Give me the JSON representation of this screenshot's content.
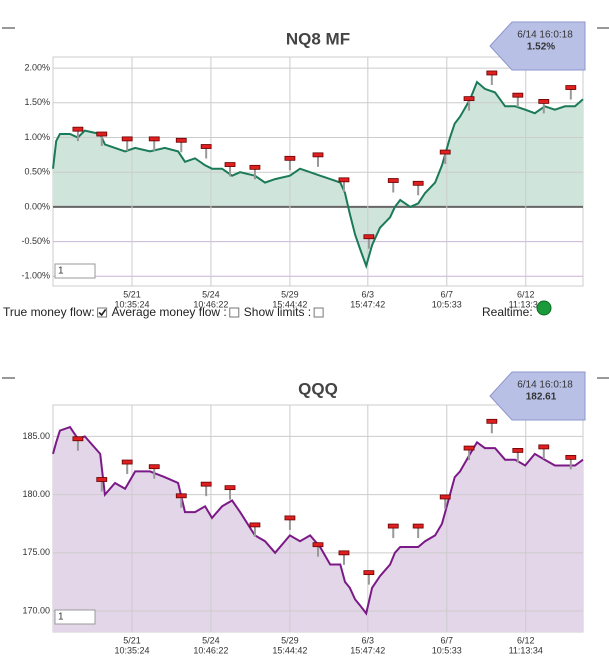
{
  "chart_data": [
    {
      "type": "area",
      "title": "NQ8 MF",
      "line_color": "#1b7a58",
      "fill_color": "#cfe5dc",
      "baseline": 0,
      "xlim": [
        0,
        100
      ],
      "ylim": [
        -1.14,
        2.16
      ],
      "grid": true,
      "yticks": [
        {
          "value": 2,
          "label": "2.00%"
        },
        {
          "value": 1.5,
          "label": "1.50%"
        },
        {
          "value": 1,
          "label": "1.00%"
        },
        {
          "value": 0.5,
          "label": "0.50%"
        },
        {
          "value": 0,
          "label": "0.00%"
        },
        {
          "value": -0.5,
          "label": "-0.50%"
        },
        {
          "value": -1,
          "label": "-1.00%"
        }
      ],
      "xticks": [
        {
          "value": 14.9,
          "label": "5/21",
          "time": "10:35:24"
        },
        {
          "value": 29.8,
          "label": "5/24",
          "time": "10:46:22"
        },
        {
          "value": 44.7,
          "label": "5/29",
          "time": "15:44:42"
        },
        {
          "value": 59.4,
          "label": "6/3",
          "time": "15:47:42"
        },
        {
          "value": 74.3,
          "label": "6/7",
          "time": "10:5:33"
        },
        {
          "value": 89.2,
          "label": "6/12",
          "time": "11:13:34"
        }
      ],
      "series": [
        {
          "x": [
            0,
            0.6,
            1.3,
            3.2,
            4.7,
            6.0,
            8.9,
            9.8,
            11.7,
            13.6,
            15.5,
            18.3,
            21.1,
            23.6,
            24.9,
            26.8,
            28.7,
            30.0,
            31.9,
            33.8,
            35.3,
            38.1,
            40.0,
            41.9,
            44.7,
            46.6,
            48.5,
            50.4,
            52.3,
            54.2,
            55.1,
            56.0,
            57.0,
            57.9,
            59.1,
            60.2,
            61.7,
            63.6,
            64.5,
            65.5,
            67.4,
            68.9,
            70.2,
            72.1,
            73.4,
            74.9,
            75.8,
            76.8,
            78.7,
            80.0,
            81.5,
            83.4,
            85.3,
            87.2,
            89.1,
            90.9,
            92.8,
            94.7,
            96.6,
            98.5,
            100
          ],
          "values": [
            0.55,
            0.95,
            1.05,
            1.05,
            1.0,
            1.1,
            1.05,
            0.9,
            0.85,
            0.8,
            0.85,
            0.8,
            0.85,
            0.8,
            0.65,
            0.7,
            0.6,
            0.55,
            0.55,
            0.45,
            0.5,
            0.45,
            0.35,
            0.4,
            0.45,
            0.55,
            0.5,
            0.45,
            0.4,
            0.35,
            0.2,
            -0.1,
            -0.4,
            -0.6,
            -0.85,
            -0.55,
            -0.3,
            -0.15,
            0.0,
            0.1,
            0.0,
            0.05,
            0.2,
            0.35,
            0.6,
            1.0,
            1.2,
            1.3,
            1.55,
            1.8,
            1.7,
            1.65,
            1.45,
            1.45,
            1.4,
            1.35,
            1.45,
            1.4,
            1.45,
            1.45,
            1.55
          ]
        }
      ],
      "flags": {
        "x": [
          4.7,
          9.2,
          14.0,
          19.1,
          24.2,
          28.9,
          33.4,
          38.1,
          44.7,
          50.0,
          54.9,
          59.6,
          64.2,
          68.9,
          74.0,
          78.5,
          82.8,
          87.7,
          92.6,
          97.7
        ],
        "values": [
          1.12,
          1.05,
          0.98,
          0.98,
          0.96,
          0.87,
          0.61,
          0.57,
          0.7,
          0.75,
          0.39,
          -0.43,
          0.38,
          0.34,
          0.79,
          1.56,
          1.93,
          1.61,
          1.52,
          1.72
        ]
      },
      "callout": {
        "x_label": "6/14 16:0:18",
        "value": 1.52,
        "value_label": "1.52%"
      },
      "input": "1"
    },
    {
      "type": "area",
      "title": "QQQ",
      "line_color": "#7b1a86",
      "fill_color": "#e4d6e9",
      "xlim": [
        0,
        100
      ],
      "ylim": [
        168.2,
        187.7
      ],
      "grid": true,
      "yticks": [
        {
          "value": 185,
          "label": "185.00"
        },
        {
          "value": 180,
          "label": "180.00"
        },
        {
          "value": 175,
          "label": "175.00"
        },
        {
          "value": 170,
          "label": "170.00"
        }
      ],
      "xticks": [
        {
          "value": 14.9,
          "label": "5/21",
          "time": "10:35:24"
        },
        {
          "value": 29.8,
          "label": "5/24",
          "time": "10:46:22"
        },
        {
          "value": 44.7,
          "label": "5/29",
          "time": "15:44:42"
        },
        {
          "value": 59.4,
          "label": "6/3",
          "time": "15:47:42"
        },
        {
          "value": 74.3,
          "label": "6/7",
          "time": "10:5:33"
        },
        {
          "value": 89.2,
          "label": "6/12",
          "time": "11:13:34"
        }
      ],
      "series": [
        {
          "x": [
            0,
            0.6,
            1.3,
            3.2,
            4.7,
            6.0,
            8.9,
            9.8,
            11.7,
            13.6,
            15.5,
            18.3,
            21.1,
            23.6,
            24.9,
            26.8,
            28.7,
            30.0,
            31.9,
            33.8,
            35.3,
            38.1,
            40.0,
            41.9,
            44.7,
            46.6,
            48.5,
            50.4,
            52.3,
            54.2,
            55.1,
            56.0,
            57.0,
            57.9,
            59.1,
            60.2,
            61.7,
            63.6,
            64.5,
            65.5,
            67.4,
            68.9,
            70.2,
            72.1,
            73.4,
            74.9,
            75.8,
            76.8,
            78.7,
            80.0,
            81.5,
            83.4,
            85.3,
            87.2,
            89.1,
            90.9,
            92.8,
            94.7,
            96.6,
            98.5,
            100
          ],
          "values": [
            183.5,
            184.5,
            185.5,
            185.8,
            184.8,
            185.0,
            183.5,
            180.0,
            181.0,
            180.5,
            182.0,
            182.0,
            181.5,
            181.0,
            178.5,
            178.5,
            179.0,
            178.0,
            179.0,
            179.5,
            178.5,
            176.5,
            176.0,
            175.0,
            176.5,
            176.0,
            176.5,
            175.5,
            174.0,
            174.0,
            172.5,
            172.0,
            171.0,
            170.5,
            169.8,
            172.0,
            173.0,
            174.0,
            175.0,
            175.5,
            175.5,
            175.5,
            176.0,
            176.5,
            177.5,
            180.0,
            181.5,
            182.0,
            183.5,
            184.5,
            184.0,
            184.0,
            183.0,
            183.0,
            182.5,
            183.5,
            183.0,
            182.5,
            182.5,
            182.5,
            183.0
          ]
        }
      ],
      "flags": {
        "x": [
          4.7,
          9.2,
          14.0,
          19.1,
          24.2,
          28.9,
          33.4,
          38.1,
          44.7,
          50.0,
          54.9,
          59.6,
          64.2,
          68.9,
          74.0,
          78.5,
          82.8,
          87.7,
          92.6,
          97.7
        ],
        "values": [
          184.8,
          181.3,
          182.8,
          182.4,
          179.9,
          180.9,
          180.6,
          177.4,
          178.0,
          175.7,
          175.0,
          173.3,
          177.3,
          177.3,
          179.8,
          184.0,
          186.3,
          183.8,
          184.1,
          183.2
        ]
      },
      "callout": {
        "x_label": "6/14 16:0:18",
        "value": 182.61,
        "value_label": "182.61"
      },
      "input": "1"
    }
  ],
  "controls": [
    {
      "label": "True money flow:",
      "checked": true
    },
    {
      "label": "Average money flow :",
      "checked": false
    },
    {
      "label": "Show limits :",
      "checked": false
    }
  ],
  "realtime": {
    "label": "Realtime:",
    "on": true
  }
}
